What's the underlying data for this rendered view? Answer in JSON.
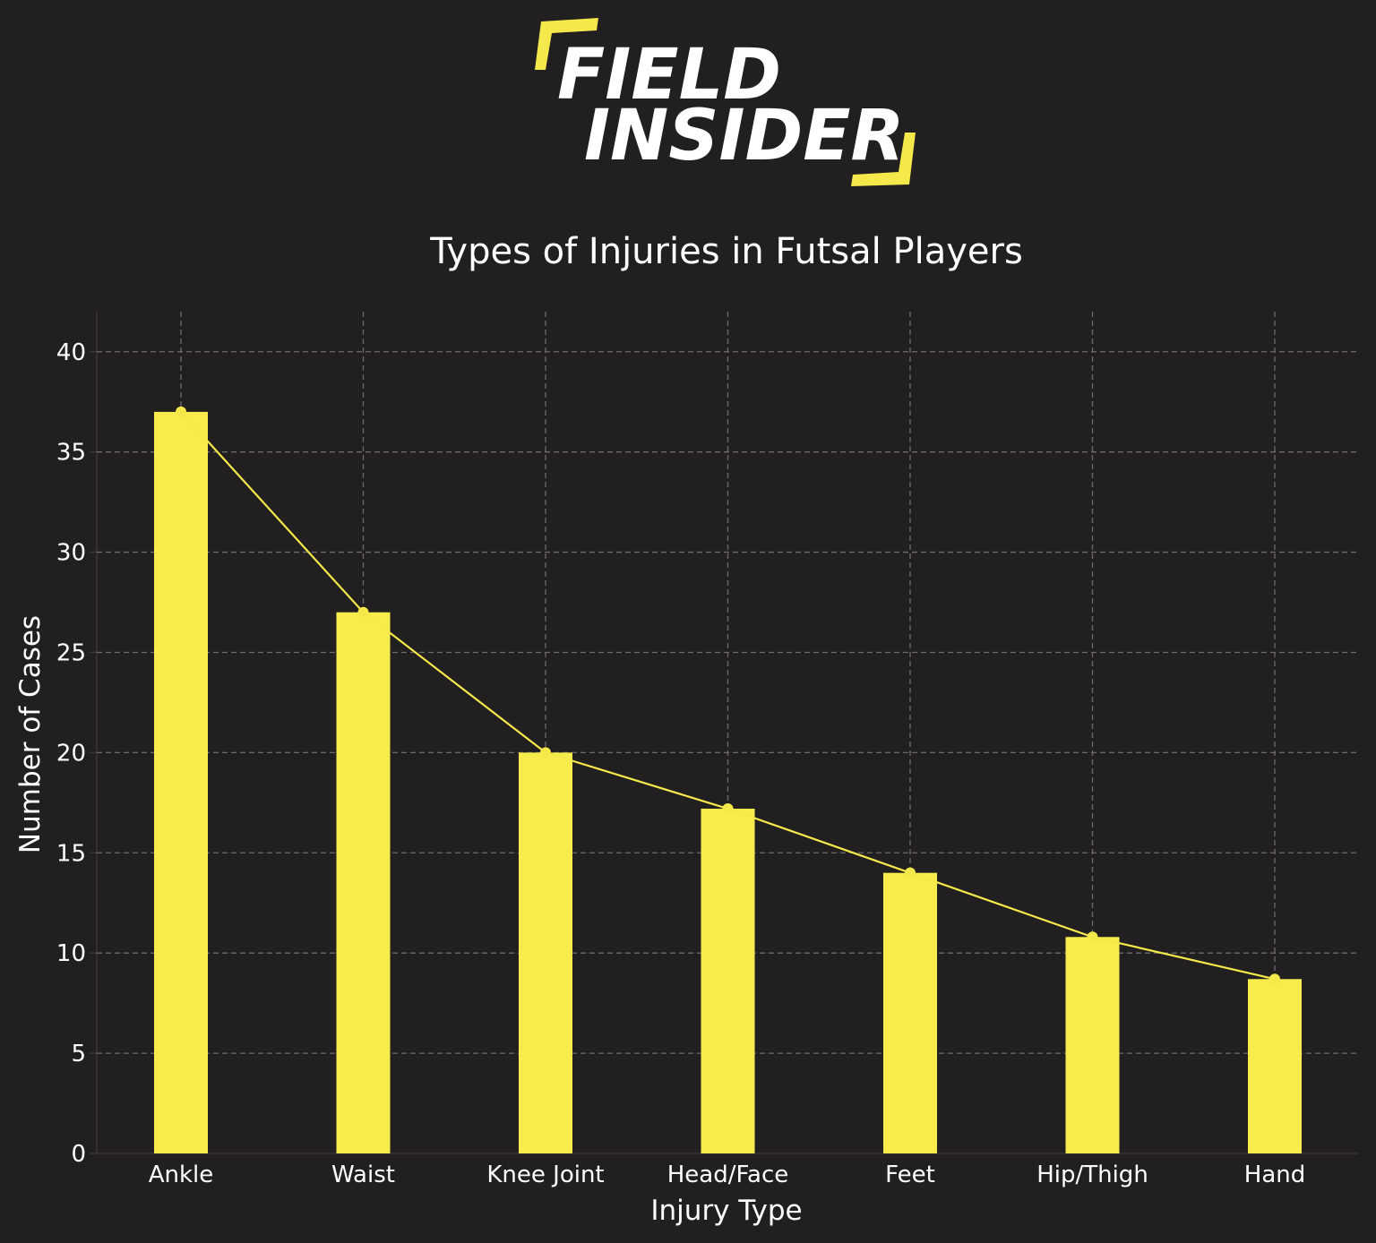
{
  "logo": {
    "line1": "FIELD",
    "line2": "INSIDER",
    "accent_color": "#f5e84a"
  },
  "chart_data": {
    "type": "bar",
    "title": "Types of Injuries in Futsal Players",
    "xlabel": "Injury Type",
    "ylabel": "Number of Cases",
    "categories": [
      "Ankle",
      "Waist",
      "Knee Joint",
      "Head/Face",
      "Feet",
      "Hip/Thigh",
      "Hand"
    ],
    "values": [
      37,
      27,
      20,
      17.2,
      14,
      10.8,
      8.7
    ],
    "overlay_line": true,
    "ylim": [
      0,
      42
    ],
    "yticks": [
      0,
      5,
      10,
      15,
      20,
      25,
      30,
      35,
      40
    ],
    "grid": true,
    "colors": {
      "background": "#221f20",
      "bar": "#f7ec4c",
      "line": "#f5e84a",
      "text": "#ffffff",
      "grid": "#6e6a6a"
    }
  }
}
